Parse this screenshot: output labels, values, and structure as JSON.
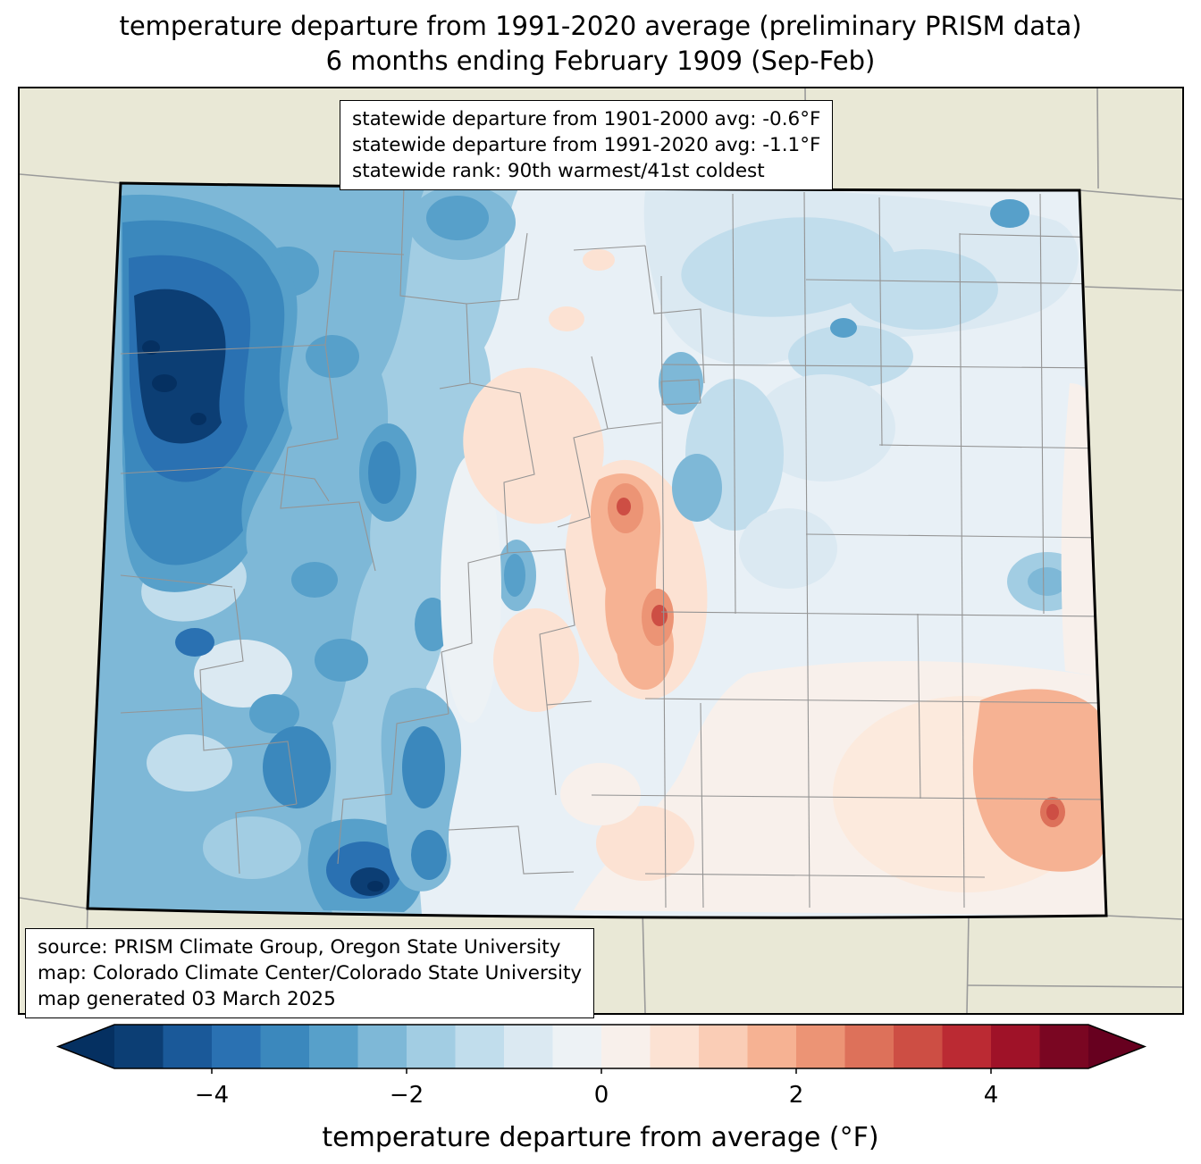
{
  "title": {
    "line1": "temperature departure from 1991-2020 average (preliminary PRISM data)",
    "line2": "6 months ending February 1909 (Sep-Feb)"
  },
  "stats_box": {
    "line1": "statewide departure from 1901-2000 avg: -0.6°F",
    "line2": "statewide departure from 1991-2020 avg: -1.1°F",
    "line3": "statewide rank: 90th warmest/41st coldest"
  },
  "source_box": {
    "line1": "source: PRISM Climate Group, Oregon State University",
    "line2": "map: Colorado Climate Center/Colorado State University",
    "line3": "map generated 03 March 2025"
  },
  "map": {
    "region": "Colorado",
    "background_color": "#e9e8d6",
    "border_color": "#000000",
    "county_line_color": "#949494",
    "neighbor_line_color": "#9a9a9a"
  },
  "colorbar": {
    "label": "temperature departure from average (°F)",
    "range": [
      -5,
      5
    ],
    "ticks": [
      {
        "value": -4,
        "label": "−4"
      },
      {
        "value": -2,
        "label": "−2"
      },
      {
        "value": 0,
        "label": "0"
      },
      {
        "value": 2,
        "label": "2"
      },
      {
        "value": 4,
        "label": "4"
      }
    ],
    "under_color": "#053061",
    "over_color": "#67001f",
    "segment_colors": [
      "#0c3e74",
      "#1a5999",
      "#2a71b2",
      "#3b88bd",
      "#57a0ca",
      "#7eb8d7",
      "#a2cde3",
      "#c1ddec",
      "#dbe9f2",
      "#edf2f5",
      "#f8f0eb",
      "#fce2d3",
      "#facdb6",
      "#f6b293",
      "#ec9475",
      "#dd715a",
      "#cd4e44",
      "#bb2a33",
      "#9f1228",
      "#7a0622"
    ]
  }
}
